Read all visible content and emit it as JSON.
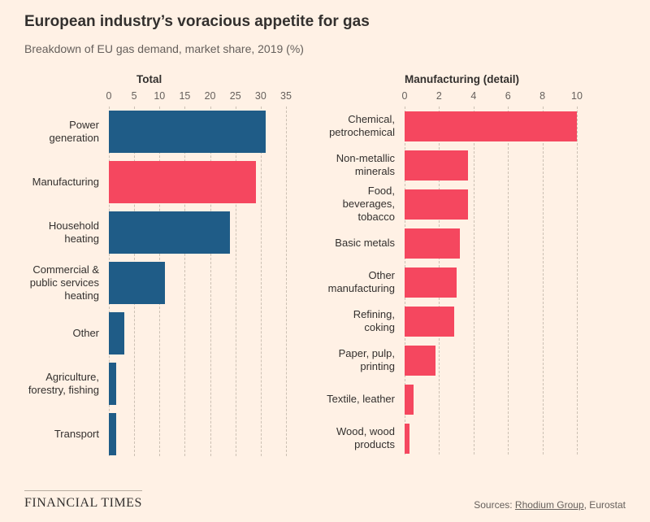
{
  "header": {
    "title": "European industry’s voracious appetite for gas",
    "subtitle": "Breakdown of EU gas demand, market share, 2019 (%)"
  },
  "colors": {
    "background": "#fff1e5",
    "blue": "#1f5c87",
    "red": "#f5475f",
    "text": "#33302e",
    "muted": "#66605c",
    "grid": "#ccc0b3"
  },
  "chart_data": [
    {
      "type": "bar",
      "orientation": "horizontal",
      "title": "Total",
      "xlabel": "",
      "ylabel": "",
      "xlim": [
        0,
        35
      ],
      "ticks": [
        0,
        5,
        10,
        15,
        20,
        25,
        30,
        35
      ],
      "grid": "dashed-vertical",
      "categories": [
        "Power generation",
        "Manufacturing",
        "Household heating",
        "Commercial & public services heating",
        "Other",
        "Agriculture, forestry, fishing",
        "Transport"
      ],
      "values": [
        31,
        29,
        24,
        11,
        3,
        1.5,
        1.5
      ],
      "bar_colors": [
        "blue",
        "red",
        "blue",
        "blue",
        "blue",
        "blue",
        "blue"
      ]
    },
    {
      "type": "bar",
      "orientation": "horizontal",
      "title": "Manufacturing (detail)",
      "xlabel": "",
      "ylabel": "",
      "xlim": [
        0,
        10
      ],
      "ticks": [
        0,
        2,
        4,
        6,
        8,
        10
      ],
      "grid": "dashed-vertical",
      "categories": [
        "Chemical, petrochemical",
        "Non-metallic minerals",
        "Food, beverages, tobacco",
        "Basic metals",
        "Other manufacturing",
        "Refining, coking",
        "Paper, pulp, printing",
        "Textile, leather",
        "Wood, wood products"
      ],
      "values": [
        10,
        3.7,
        3.7,
        3.2,
        3.0,
        2.9,
        1.8,
        0.5,
        0.3
      ],
      "bar_colors": [
        "red",
        "red",
        "red",
        "red",
        "red",
        "red",
        "red",
        "red",
        "red"
      ]
    }
  ],
  "footer": {
    "brand": "FINANCIAL TIMES",
    "sources_prefix": "Sources: ",
    "source_link": "Rhodium Group",
    "sources_suffix": ", Eurostat"
  }
}
